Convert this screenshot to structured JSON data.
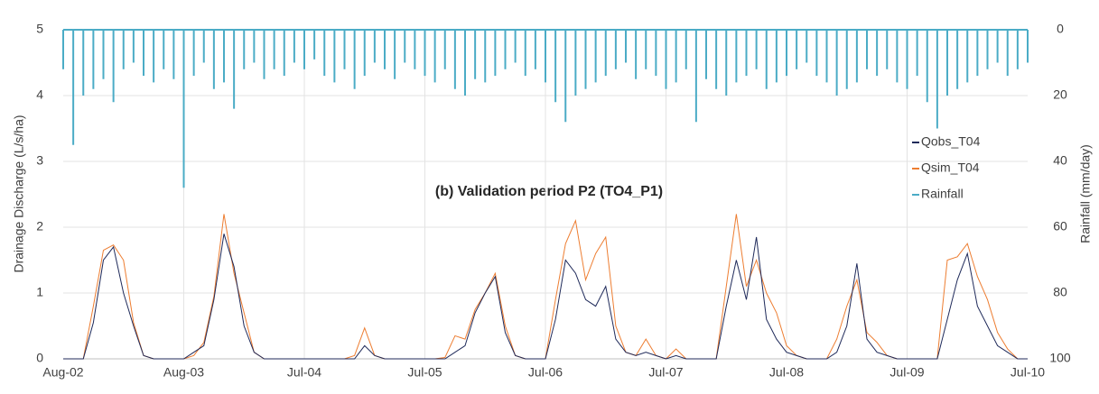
{
  "chart_data": {
    "type": "line",
    "title": "(b) Validation period P2 (TO4_P1)",
    "y_label": "Drainage Discharge (L/s/ha)",
    "y2_label": "Rainfall (mm/day)",
    "x": [
      "Aug-02",
      null,
      null,
      null,
      null,
      null,
      null,
      null,
      null,
      null,
      null,
      null,
      "Aug-03",
      null,
      null,
      null,
      null,
      null,
      null,
      null,
      null,
      null,
      null,
      null,
      "Jul-04",
      null,
      null,
      null,
      null,
      null,
      null,
      null,
      null,
      null,
      null,
      null,
      "Jul-05",
      null,
      null,
      null,
      null,
      null,
      null,
      null,
      null,
      null,
      null,
      null,
      "Jul-06",
      null,
      null,
      null,
      null,
      null,
      null,
      null,
      null,
      null,
      null,
      null,
      "Jul-07",
      null,
      null,
      null,
      null,
      null,
      null,
      null,
      null,
      null,
      null,
      null,
      "Jul-08",
      null,
      null,
      null,
      null,
      null,
      null,
      null,
      null,
      null,
      null,
      null,
      "Jul-09",
      null,
      null,
      null,
      null,
      null,
      null,
      null,
      null,
      null,
      null,
      null,
      "Jul-10"
    ],
    "ylim": [
      0,
      5
    ],
    "yticks": [
      0,
      1,
      2,
      3,
      4,
      5
    ],
    "y2lim": [
      0,
      100
    ],
    "y2ticks": [
      0,
      20,
      40,
      60,
      80,
      100
    ],
    "y2_inverted": true,
    "grid": true,
    "legend": "right",
    "series": [
      {
        "name": "Qobs_T04",
        "color": "#1f2a5a",
        "mark": "line",
        "values": [
          0,
          0,
          0,
          0.55,
          1.5,
          1.7,
          1.0,
          0.5,
          0.05,
          0,
          0,
          0,
          0,
          0.1,
          0.2,
          0.9,
          1.9,
          1.4,
          0.5,
          0.1,
          0,
          0,
          0,
          0,
          0,
          0,
          0,
          0,
          0,
          0,
          0.2,
          0.05,
          0,
          0,
          0,
          0,
          0,
          0,
          0,
          0.1,
          0.2,
          0.7,
          1.0,
          1.25,
          0.4,
          0.05,
          0,
          0,
          0,
          0.6,
          1.5,
          1.3,
          0.9,
          0.8,
          1.1,
          0.3,
          0.1,
          0.05,
          0.1,
          0.05,
          0,
          0.05,
          0,
          0,
          0,
          0,
          0.8,
          1.5,
          0.9,
          1.85,
          0.6,
          0.3,
          0.1,
          0.05,
          0,
          0,
          0,
          0.1,
          0.5,
          1.45,
          0.3,
          0.1,
          0.05,
          0,
          0,
          0,
          0,
          0,
          0.6,
          1.2,
          1.6,
          0.8,
          0.5,
          0.2,
          0.1,
          0,
          0
        ]
      },
      {
        "name": "Qsim_T04",
        "color": "#ed7d31",
        "mark": "line",
        "values": [
          0,
          0,
          0,
          0.8,
          1.65,
          1.73,
          1.5,
          0.55,
          0.05,
          0,
          0,
          0,
          0,
          0.05,
          0.25,
          0.95,
          2.2,
          1.3,
          0.7,
          0.1,
          0,
          0,
          0,
          0,
          0,
          0,
          0,
          0,
          0,
          0.05,
          0.47,
          0.05,
          0,
          0,
          0,
          0,
          0,
          0,
          0.02,
          0.35,
          0.3,
          0.75,
          1.0,
          1.3,
          0.5,
          0.05,
          0,
          0,
          0,
          0.9,
          1.75,
          2.1,
          1.2,
          1.6,
          1.85,
          0.5,
          0.1,
          0.05,
          0.3,
          0.05,
          0,
          0.15,
          0,
          0,
          0,
          0,
          1.1,
          2.2,
          1.1,
          1.5,
          1.0,
          0.7,
          0.2,
          0.05,
          0,
          0,
          0,
          0.3,
          0.8,
          1.2,
          0.4,
          0.25,
          0.05,
          0,
          0,
          0,
          0,
          0,
          1.5,
          1.55,
          1.75,
          1.25,
          0.9,
          0.4,
          0.15,
          0,
          0
        ]
      },
      {
        "name": "Rainfall",
        "color": "#4bacc6",
        "mark": "bar",
        "axis": "y2",
        "values": [
          12,
          35,
          20,
          18,
          15,
          22,
          12,
          10,
          14,
          16,
          12,
          15,
          48,
          14,
          10,
          18,
          16,
          24,
          12,
          10,
          15,
          12,
          14,
          10,
          12,
          9,
          14,
          16,
          12,
          18,
          14,
          10,
          12,
          15,
          10,
          12,
          14,
          16,
          12,
          18,
          20,
          15,
          16,
          14,
          12,
          10,
          14,
          12,
          16,
          22,
          28,
          20,
          18,
          16,
          14,
          12,
          10,
          15,
          12,
          14,
          18,
          16,
          12,
          28,
          15,
          18,
          20,
          16,
          14,
          12,
          18,
          16,
          14,
          12,
          10,
          14,
          16,
          20,
          18,
          16,
          12,
          14,
          12,
          16,
          18,
          14,
          22,
          30,
          20,
          18,
          16,
          14,
          12,
          10,
          14,
          12,
          10
        ]
      }
    ]
  }
}
